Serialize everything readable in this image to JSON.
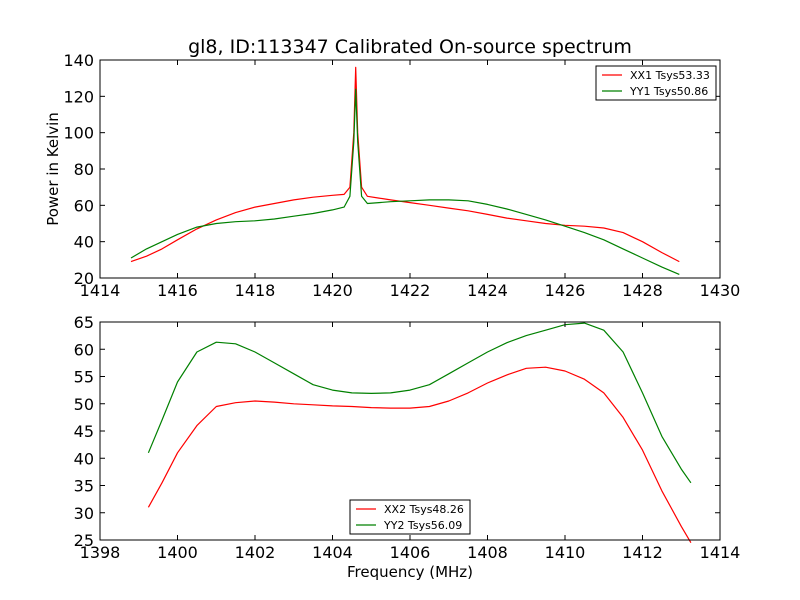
{
  "chart_data": [
    {
      "type": "line",
      "title": "gl8, ID:113347 Calibrated On-source spectrum",
      "xlabel": "",
      "ylabel": "Power in Kelvin",
      "xlim": [
        1414,
        1430
      ],
      "ylim": [
        20,
        140
      ],
      "xticks": [
        1414,
        1416,
        1418,
        1420,
        1422,
        1424,
        1426,
        1428,
        1430
      ],
      "yticks": [
        20,
        40,
        60,
        80,
        100,
        120,
        140
      ],
      "legend_position": "top-right",
      "grid": false,
      "series": [
        {
          "name": "XX1 Tsys53.33",
          "color": "#ff0000",
          "x": [
            1414.8,
            1415.2,
            1415.6,
            1416.0,
            1416.5,
            1417.0,
            1417.5,
            1418.0,
            1418.5,
            1419.0,
            1419.5,
            1420.0,
            1420.3,
            1420.45,
            1420.55,
            1420.6,
            1420.65,
            1420.75,
            1420.9,
            1421.2,
            1421.5,
            1422.0,
            1422.5,
            1423.0,
            1423.5,
            1424.0,
            1424.5,
            1425.0,
            1425.5,
            1426.0,
            1426.5,
            1427.0,
            1427.5,
            1428.0,
            1428.5,
            1428.95
          ],
          "y": [
            29,
            32,
            36,
            41,
            47,
            52,
            56,
            59,
            61,
            63,
            64.5,
            65.5,
            66,
            70,
            100,
            136,
            100,
            70,
            65,
            64,
            63,
            61.5,
            60,
            58.5,
            57,
            55,
            53,
            51.5,
            50,
            49,
            48.5,
            47.5,
            45,
            40,
            34,
            29
          ]
        },
        {
          "name": "YY1 Tsys50.86",
          "color": "#008000",
          "x": [
            1414.8,
            1415.2,
            1415.6,
            1416.0,
            1416.5,
            1417.0,
            1417.5,
            1418.0,
            1418.5,
            1419.0,
            1419.5,
            1420.0,
            1420.3,
            1420.45,
            1420.55,
            1420.6,
            1420.65,
            1420.75,
            1420.9,
            1421.2,
            1421.5,
            1422.0,
            1422.5,
            1423.0,
            1423.5,
            1424.0,
            1424.5,
            1425.0,
            1425.5,
            1426.0,
            1426.5,
            1427.0,
            1427.5,
            1428.0,
            1428.5,
            1428.95
          ],
          "y": [
            31,
            36,
            40,
            44,
            48,
            50,
            51,
            51.5,
            52.5,
            54,
            55.5,
            57.5,
            59,
            65,
            95,
            124,
            95,
            65,
            61,
            61.5,
            62,
            62.5,
            63,
            63,
            62.5,
            60.5,
            58,
            55,
            52,
            48.5,
            45,
            41,
            36,
            31,
            26,
            22
          ]
        }
      ]
    },
    {
      "type": "line",
      "title": "",
      "xlabel": "Frequency (MHz)",
      "ylabel": "",
      "xlim": [
        1398,
        1414
      ],
      "ylim": [
        25,
        65
      ],
      "xticks": [
        1398,
        1400,
        1402,
        1404,
        1406,
        1408,
        1410,
        1412,
        1414
      ],
      "yticks": [
        25,
        30,
        35,
        40,
        45,
        50,
        55,
        60,
        65
      ],
      "legend_position": "bottom-center",
      "grid": false,
      "series": [
        {
          "name": "XX2 Tsys48.26",
          "color": "#ff0000",
          "x": [
            1399.25,
            1399.6,
            1400.0,
            1400.5,
            1401.0,
            1401.5,
            1402.0,
            1402.5,
            1403.0,
            1403.5,
            1404.0,
            1404.5,
            1405.0,
            1405.5,
            1406.0,
            1406.5,
            1407.0,
            1407.5,
            1408.0,
            1408.5,
            1409.0,
            1409.5,
            1410.0,
            1410.5,
            1411.0,
            1411.5,
            1412.0,
            1412.5,
            1413.0,
            1413.25
          ],
          "y": [
            31,
            35.5,
            41,
            46,
            49.5,
            50.2,
            50.5,
            50.3,
            50,
            49.8,
            49.6,
            49.5,
            49.3,
            49.2,
            49.2,
            49.5,
            50.5,
            52,
            53.8,
            55.3,
            56.5,
            56.7,
            56,
            54.5,
            52,
            47.5,
            41.5,
            34,
            27.5,
            24.5
          ]
        },
        {
          "name": "YY2 Tsys56.09",
          "color": "#008000",
          "x": [
            1399.25,
            1399.6,
            1400.0,
            1400.5,
            1401.0,
            1401.5,
            1402.0,
            1402.5,
            1403.0,
            1403.5,
            1404.0,
            1404.5,
            1405.0,
            1405.5,
            1406.0,
            1406.5,
            1407.0,
            1407.5,
            1408.0,
            1408.5,
            1409.0,
            1409.5,
            1410.0,
            1410.5,
            1411.0,
            1411.5,
            1412.0,
            1412.5,
            1413.0,
            1413.25
          ],
          "y": [
            41,
            47,
            54,
            59.5,
            61.3,
            61,
            59.5,
            57.5,
            55.5,
            53.5,
            52.5,
            52,
            51.9,
            52,
            52.5,
            53.5,
            55.5,
            57.5,
            59.5,
            61.2,
            62.5,
            63.5,
            64.5,
            64.8,
            63.5,
            59.5,
            52,
            44,
            38,
            35.5
          ]
        }
      ]
    }
  ]
}
